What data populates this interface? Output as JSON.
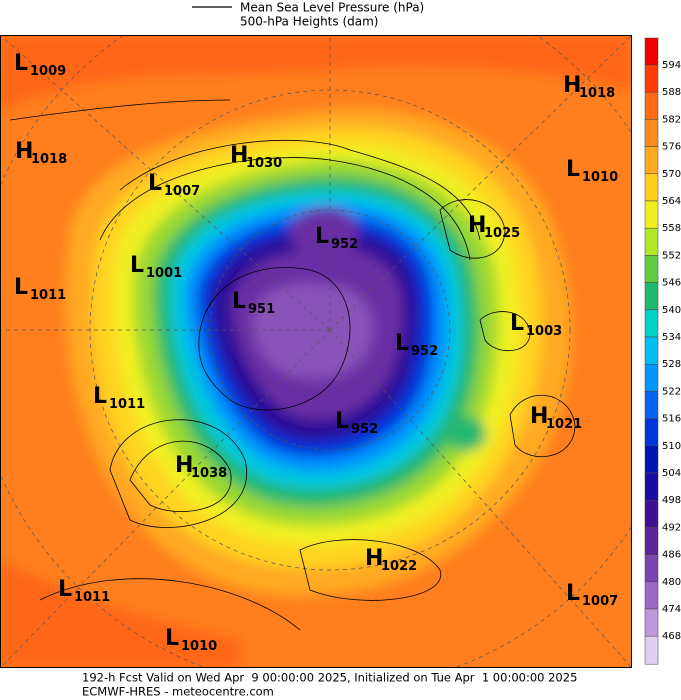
{
  "header": {
    "mslp_label": "Mean Sea Level Pressure (hPa)",
    "height_label": "500-hPa Heights (dam)"
  },
  "colorbar": {
    "levels": [
      594,
      588,
      582,
      576,
      570,
      564,
      558,
      552,
      546,
      540,
      534,
      528,
      522,
      516,
      510,
      504,
      498,
      492,
      486,
      480,
      474,
      468
    ],
    "colors": [
      "#ee0000",
      "#ff3c00",
      "#ff6a14",
      "#ff8a1c",
      "#ffaa20",
      "#ffd020",
      "#f0f020",
      "#b4e628",
      "#60cc40",
      "#20b870",
      "#00d2c8",
      "#00c0f0",
      "#0096ff",
      "#0064f0",
      "#0034dc",
      "#0014b4",
      "#1a0ca0",
      "#3c1090",
      "#5c2498",
      "#7c44b0",
      "#9c68c4",
      "#bc98dc",
      "#e0d0f0"
    ]
  },
  "centers": [
    {
      "letter": "L",
      "value": 1009
    },
    {
      "letter": "H",
      "value": 1018
    },
    {
      "letter": "H",
      "value": 1018
    },
    {
      "letter": "H",
      "value": 1030
    },
    {
      "letter": "L",
      "value": 1007
    },
    {
      "letter": "L",
      "value": 1010
    },
    {
      "letter": "H",
      "value": 1025
    },
    {
      "letter": "L",
      "value": 952
    },
    {
      "letter": "L",
      "value": 1001
    },
    {
      "letter": "L",
      "value": 1011
    },
    {
      "letter": "L",
      "value": 951
    },
    {
      "letter": "L",
      "value": 1003
    },
    {
      "letter": "L",
      "value": 952
    },
    {
      "letter": "L",
      "value": 1011
    },
    {
      "letter": "H",
      "value": 1021
    },
    {
      "letter": "L",
      "value": 952
    },
    {
      "letter": "H",
      "value": 1038
    },
    {
      "letter": "H",
      "value": 1022
    },
    {
      "letter": "L",
      "value": 1011
    },
    {
      "letter": "L",
      "value": 1007
    },
    {
      "letter": "L",
      "value": 1010
    }
  ],
  "footer": {
    "line1": "192-h Fcst Valid on Wed Apr  9 00:00:00 2025, Initialized on Tue Apr  1 00:00:00 2025",
    "line2": "ECMWF-HRES - meteocentre.com"
  }
}
